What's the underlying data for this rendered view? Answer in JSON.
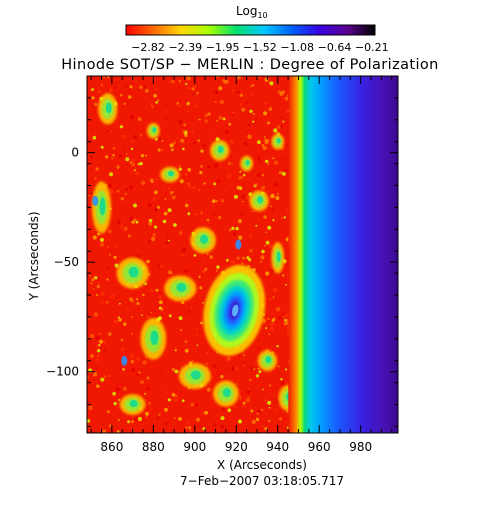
{
  "chart_data": {
    "type": "heatmap",
    "title": "Hinode SOT/SP − MERLIN : Degree of Polarization",
    "xlabel": "X (Arcseconds)",
    "ylabel": "Y (Arcseconds)",
    "timestamp": "7−Feb−2007 03:18:05.717",
    "xlim": [
      848,
      998
    ],
    "ylim": [
      -128,
      35
    ],
    "x_ticks": [
      860,
      880,
      900,
      920,
      940,
      960,
      980
    ],
    "y_ticks": [
      0,
      -50,
      -100
    ],
    "y_tick_labels": [
      "0",
      "−50",
      "−100"
    ],
    "colorbar": {
      "title": "Log",
      "title_sub": "10",
      "tick_labels": [
        "−2.82",
        "−2.39",
        "−1.95",
        "−1.52",
        "−1.08",
        "−0.64",
        "−0.21"
      ],
      "range": [
        -2.82,
        -0.21
      ],
      "colors": [
        "#ff0000",
        "#ff6a00",
        "#ffd800",
        "#a8ff00",
        "#00e070",
        "#00c8ff",
        "#0060ff",
        "#3a00e0",
        "#5a0090",
        "#000000"
      ]
    },
    "features": {
      "limb_x": 962,
      "spot_center": [
        919,
        -72
      ],
      "spot_min_value": -0.64
    }
  }
}
